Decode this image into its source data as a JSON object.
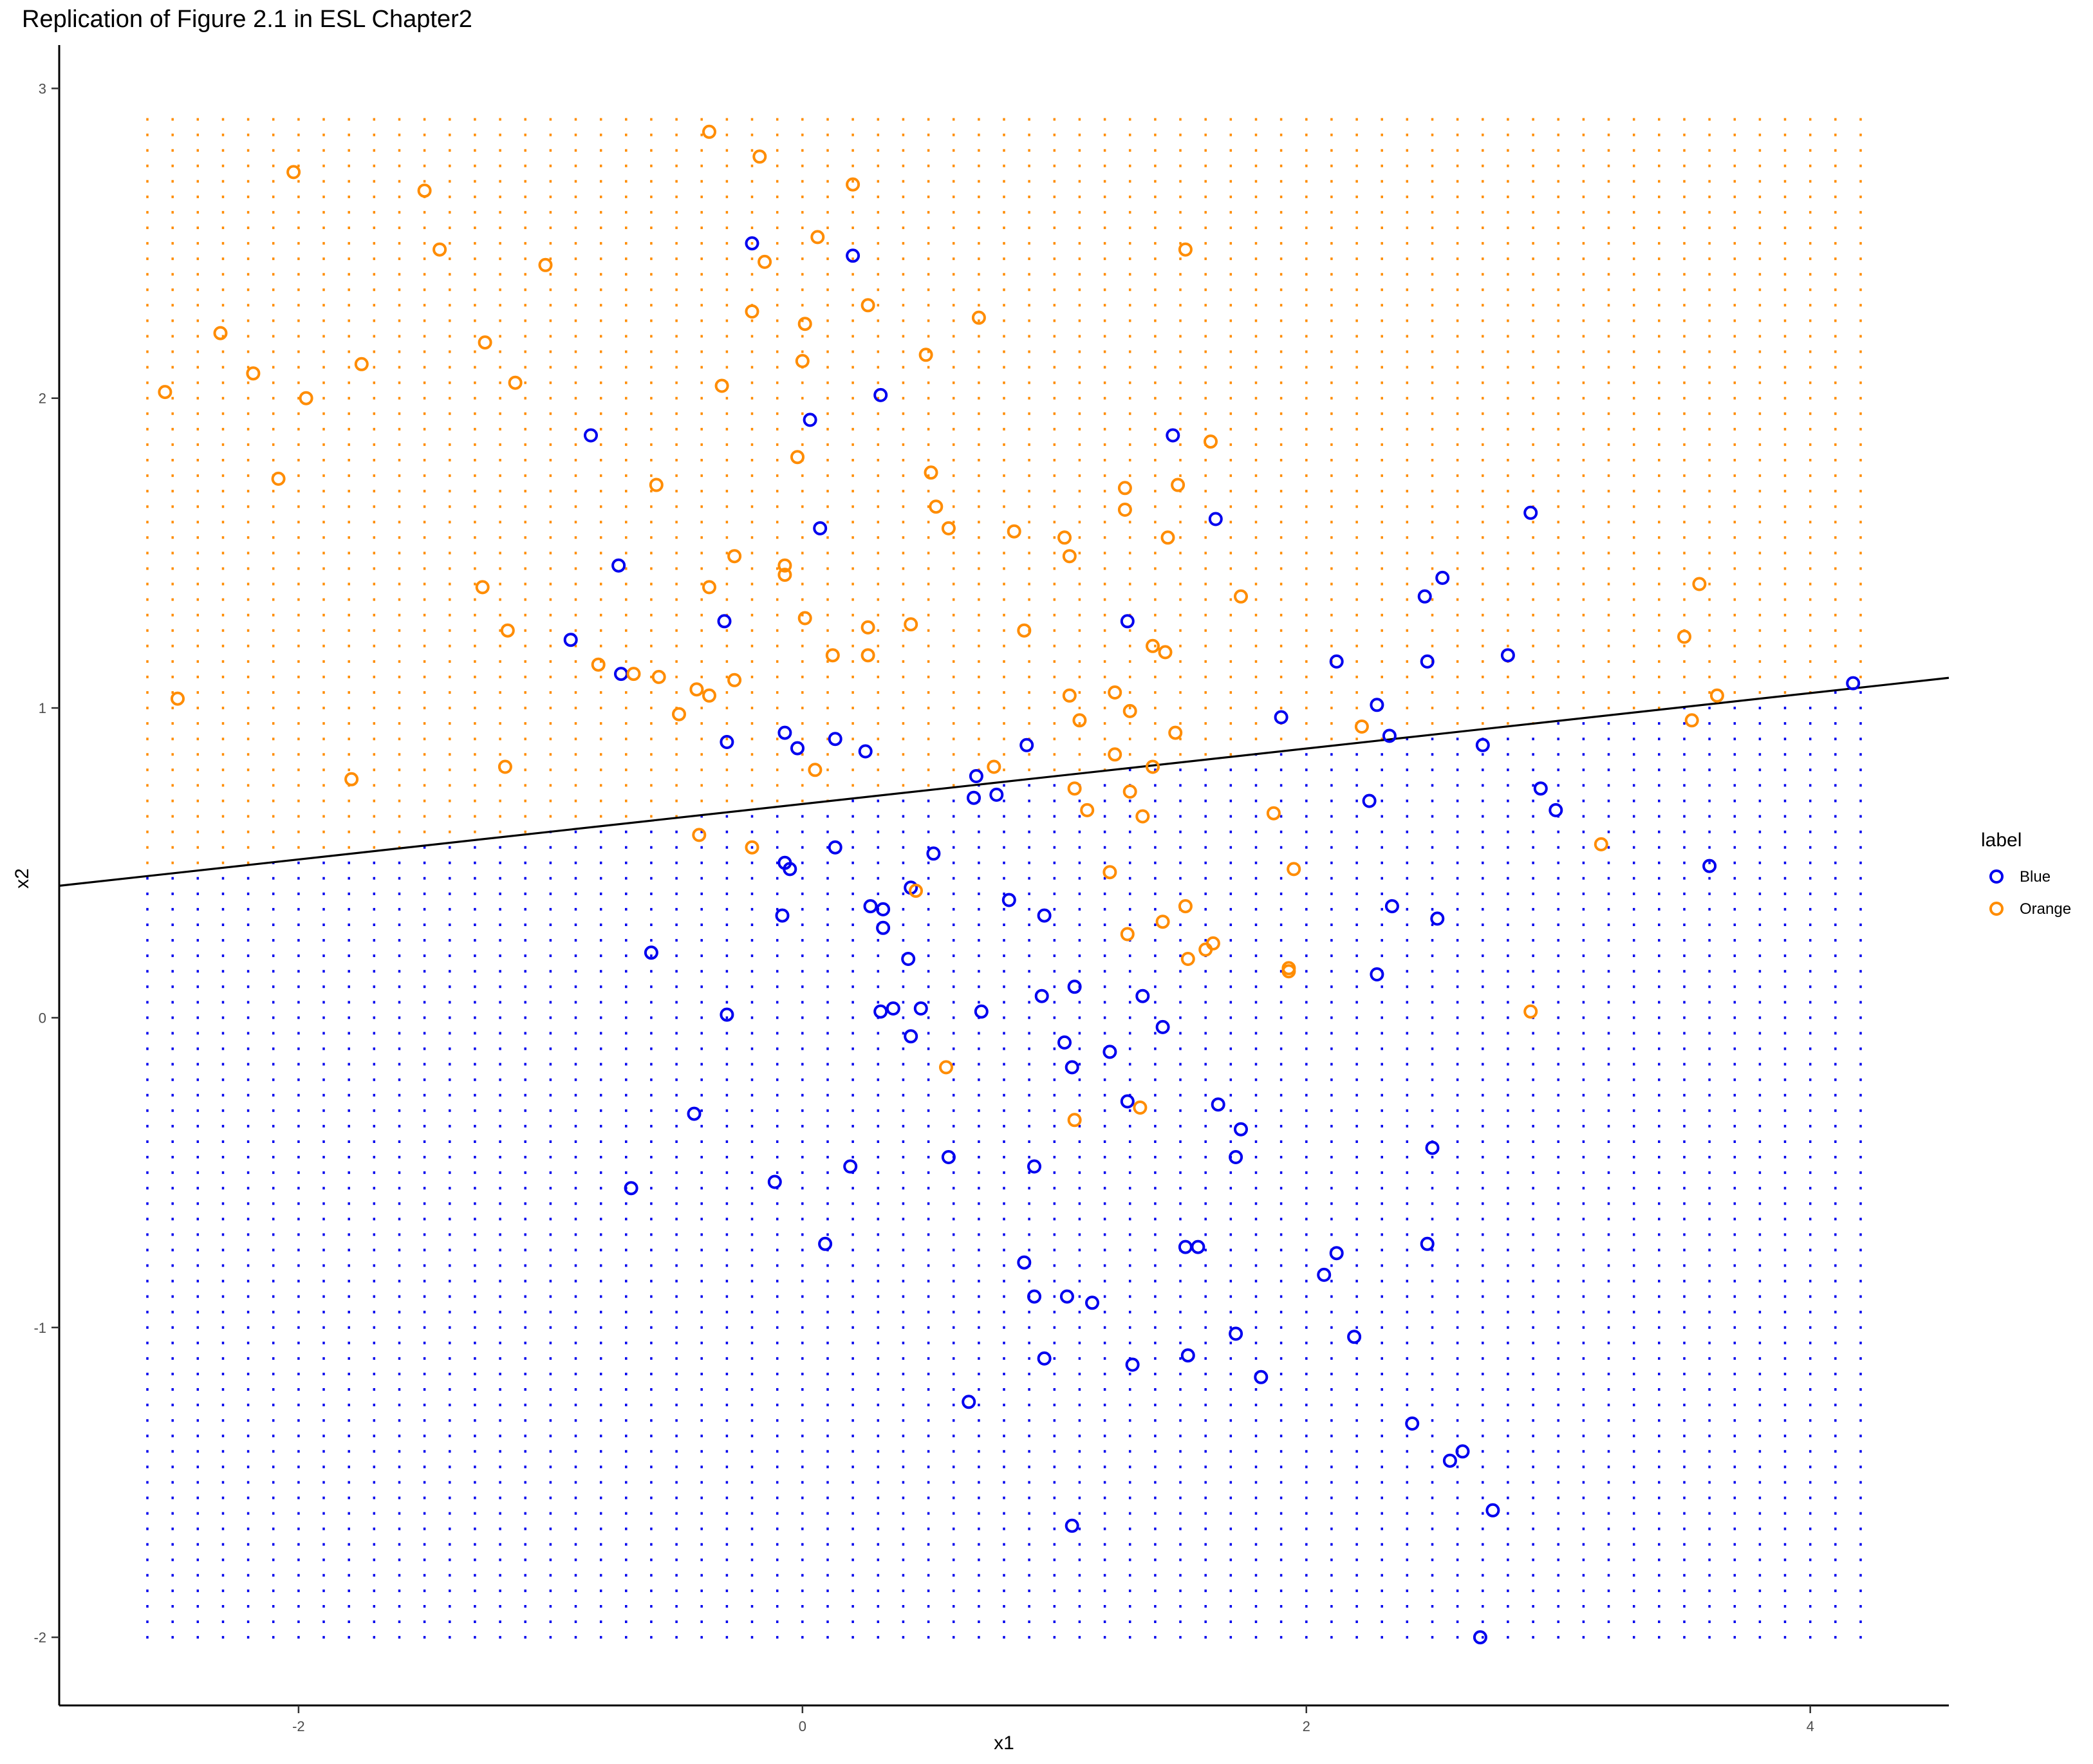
{
  "chart_data": {
    "type": "scatter",
    "title": "Replication of Figure 2.1 in ESL Chapter2",
    "xlabel": "x1",
    "ylabel": "x2",
    "xlim": [
      -2.95,
      4.55
    ],
    "ylim": [
      -2.22,
      3.14
    ],
    "x_ticks": [
      -2,
      0,
      2,
      4
    ],
    "x_tick_labels": [
      "-2",
      "0",
      "2",
      "4"
    ],
    "y_ticks": [
      -2,
      -1,
      0,
      1,
      2,
      3
    ],
    "y_tick_labels": [
      "-2",
      "-1",
      "0",
      "1",
      "2",
      "3"
    ],
    "grid": false,
    "legend": {
      "title": "label",
      "position": "right",
      "entries": [
        "Blue",
        "Orange"
      ]
    },
    "colors": {
      "Blue": "#0000ee",
      "Orange": "#ff8c00"
    },
    "decision_boundary": {
      "type": "line",
      "intercept": 0.69,
      "slope": 0.0895
    },
    "background_grid": {
      "x_range": [
        -2.6,
        4.2
      ],
      "y_range": [
        -2.0,
        2.9
      ],
      "x_step": 0.1,
      "y_step": 0.05,
      "note_colored_by": "decision_boundary"
    },
    "series": [
      {
        "name": "Blue",
        "points": [
          [
            -0.2,
            2.5
          ],
          [
            0.2,
            2.46
          ],
          [
            0.31,
            2.01
          ],
          [
            0.03,
            1.93
          ],
          [
            -0.84,
            1.88
          ],
          [
            1.47,
            1.88
          ],
          [
            0.07,
            1.58
          ],
          [
            1.64,
            1.61
          ],
          [
            2.89,
            1.63
          ],
          [
            -0.73,
            1.46
          ],
          [
            2.54,
            1.42
          ],
          [
            2.47,
            1.36
          ],
          [
            -0.31,
            1.28
          ],
          [
            1.29,
            1.28
          ],
          [
            -0.92,
            1.22
          ],
          [
            2.12,
            1.15
          ],
          [
            2.48,
            1.15
          ],
          [
            2.8,
            1.17
          ],
          [
            -0.72,
            1.11
          ],
          [
            4.17,
            1.08
          ],
          [
            2.28,
            1.01
          ],
          [
            1.9,
            0.97
          ],
          [
            2.33,
            0.91
          ],
          [
            -0.07,
            0.92
          ],
          [
            0.13,
            0.9
          ],
          [
            -0.3,
            0.89
          ],
          [
            -0.02,
            0.87
          ],
          [
            0.25,
            0.86
          ],
          [
            0.89,
            0.88
          ],
          [
            2.7,
            0.88
          ],
          [
            0.69,
            0.78
          ],
          [
            0.68,
            0.71
          ],
          [
            0.77,
            0.72
          ],
          [
            2.93,
            0.74
          ],
          [
            2.99,
            0.67
          ],
          [
            2.25,
            0.7
          ],
          [
            0.13,
            0.55
          ],
          [
            0.52,
            0.53
          ],
          [
            -0.07,
            0.5
          ],
          [
            -0.05,
            0.48
          ],
          [
            3.6,
            0.49
          ],
          [
            0.43,
            0.42
          ],
          [
            0.82,
            0.38
          ],
          [
            0.27,
            0.36
          ],
          [
            0.32,
            0.35
          ],
          [
            2.34,
            0.36
          ],
          [
            -0.08,
            0.33
          ],
          [
            0.96,
            0.33
          ],
          [
            2.52,
            0.32
          ],
          [
            0.32,
            0.29
          ],
          [
            -0.6,
            0.21
          ],
          [
            0.42,
            0.19
          ],
          [
            2.28,
            0.14
          ],
          [
            1.08,
            0.1
          ],
          [
            0.95,
            0.07
          ],
          [
            1.35,
            0.07
          ],
          [
            0.31,
            0.02
          ],
          [
            0.36,
            0.03
          ],
          [
            0.47,
            0.03
          ],
          [
            0.71,
            0.02
          ],
          [
            -0.3,
            0.01
          ],
          [
            1.43,
            -0.03
          ],
          [
            0.43,
            -0.06
          ],
          [
            1.04,
            -0.08
          ],
          [
            1.22,
            -0.11
          ],
          [
            1.07,
            -0.16
          ],
          [
            1.29,
            -0.27
          ],
          [
            1.65,
            -0.28
          ],
          [
            -0.43,
            -0.31
          ],
          [
            1.74,
            -0.36
          ],
          [
            2.5,
            -0.42
          ],
          [
            0.58,
            -0.45
          ],
          [
            1.72,
            -0.45
          ],
          [
            0.19,
            -0.48
          ],
          [
            0.92,
            -0.48
          ],
          [
            -0.11,
            -0.53
          ],
          [
            -0.68,
            -0.55
          ],
          [
            0.09,
            -0.73
          ],
          [
            1.52,
            -0.74
          ],
          [
            1.57,
            -0.74
          ],
          [
            2.48,
            -0.73
          ],
          [
            2.12,
            -0.76
          ],
          [
            0.88,
            -0.79
          ],
          [
            2.07,
            -0.83
          ],
          [
            0.92,
            -0.9
          ],
          [
            1.05,
            -0.9
          ],
          [
            1.15,
            -0.92
          ],
          [
            1.72,
            -1.02
          ],
          [
            2.19,
            -1.03
          ],
          [
            1.53,
            -1.09
          ],
          [
            0.96,
            -1.1
          ],
          [
            1.31,
            -1.12
          ],
          [
            1.82,
            -1.16
          ],
          [
            0.66,
            -1.24
          ],
          [
            2.42,
            -1.31
          ],
          [
            2.62,
            -1.4
          ],
          [
            2.57,
            -1.43
          ],
          [
            2.74,
            -1.59
          ],
          [
            1.07,
            -1.64
          ],
          [
            2.69,
            -2.0
          ]
        ]
      },
      {
        "name": "Orange",
        "points": [
          [
            -0.37,
            2.86
          ],
          [
            -0.17,
            2.78
          ],
          [
            -2.02,
            2.73
          ],
          [
            0.2,
            2.69
          ],
          [
            -1.5,
            2.67
          ],
          [
            0.06,
            2.52
          ],
          [
            -1.44,
            2.48
          ],
          [
            1.52,
            2.48
          ],
          [
            -1.02,
            2.43
          ],
          [
            -0.15,
            2.44
          ],
          [
            0.26,
            2.3
          ],
          [
            -0.2,
            2.28
          ],
          [
            0.7,
            2.26
          ],
          [
            0.01,
            2.24
          ],
          [
            -2.31,
            2.21
          ],
          [
            -1.26,
            2.18
          ],
          [
            0.49,
            2.14
          ],
          [
            0.0,
            2.12
          ],
          [
            -1.75,
            2.11
          ],
          [
            -2.18,
            2.08
          ],
          [
            -1.14,
            2.05
          ],
          [
            -0.32,
            2.04
          ],
          [
            -2.53,
            2.02
          ],
          [
            -1.97,
            2.0
          ],
          [
            1.62,
            1.86
          ],
          [
            -0.02,
            1.81
          ],
          [
            0.51,
            1.76
          ],
          [
            -2.08,
            1.74
          ],
          [
            -0.58,
            1.72
          ],
          [
            1.49,
            1.72
          ],
          [
            1.28,
            1.71
          ],
          [
            0.53,
            1.65
          ],
          [
            1.28,
            1.64
          ],
          [
            0.58,
            1.58
          ],
          [
            0.84,
            1.57
          ],
          [
            1.04,
            1.55
          ],
          [
            1.45,
            1.55
          ],
          [
            -0.27,
            1.49
          ],
          [
            1.06,
            1.49
          ],
          [
            -0.07,
            1.46
          ],
          [
            -0.07,
            1.43
          ],
          [
            -1.27,
            1.39
          ],
          [
            -0.37,
            1.39
          ],
          [
            1.74,
            1.36
          ],
          [
            3.56,
            1.4
          ],
          [
            0.01,
            1.29
          ],
          [
            -1.17,
            1.25
          ],
          [
            0.26,
            1.26
          ],
          [
            0.43,
            1.27
          ],
          [
            0.88,
            1.25
          ],
          [
            3.5,
            1.23
          ],
          [
            1.39,
            1.2
          ],
          [
            1.44,
            1.18
          ],
          [
            0.12,
            1.17
          ],
          [
            0.26,
            1.17
          ],
          [
            -0.81,
            1.14
          ],
          [
            -0.67,
            1.11
          ],
          [
            -0.57,
            1.1
          ],
          [
            -0.27,
            1.09
          ],
          [
            -0.42,
            1.06
          ],
          [
            -0.37,
            1.04
          ],
          [
            1.06,
            1.04
          ],
          [
            1.24,
            1.05
          ],
          [
            -2.48,
            1.03
          ],
          [
            3.63,
            1.04
          ],
          [
            -0.49,
            0.98
          ],
          [
            1.3,
            0.99
          ],
          [
            1.1,
            0.96
          ],
          [
            3.53,
            0.96
          ],
          [
            2.22,
            0.94
          ],
          [
            1.48,
            0.92
          ],
          [
            1.24,
            0.85
          ],
          [
            0.05,
            0.8
          ],
          [
            0.76,
            0.81
          ],
          [
            1.39,
            0.81
          ],
          [
            -1.79,
            0.77
          ],
          [
            -1.18,
            0.81
          ],
          [
            1.08,
            0.74
          ],
          [
            1.3,
            0.73
          ],
          [
            1.13,
            0.67
          ],
          [
            1.35,
            0.65
          ],
          [
            1.87,
            0.66
          ],
          [
            -0.41,
            0.59
          ],
          [
            -0.2,
            0.55
          ],
          [
            3.17,
            0.56
          ],
          [
            1.95,
            0.48
          ],
          [
            1.22,
            0.47
          ],
          [
            0.45,
            0.41
          ],
          [
            1.52,
            0.36
          ],
          [
            1.43,
            0.31
          ],
          [
            1.29,
            0.27
          ],
          [
            1.63,
            0.24
          ],
          [
            1.6,
            0.22
          ],
          [
            1.53,
            0.19
          ],
          [
            1.93,
            0.16
          ],
          [
            1.93,
            0.15
          ],
          [
            2.89,
            0.02
          ],
          [
            0.57,
            -0.16
          ],
          [
            1.34,
            -0.29
          ],
          [
            1.08,
            -0.33
          ]
        ]
      }
    ]
  }
}
